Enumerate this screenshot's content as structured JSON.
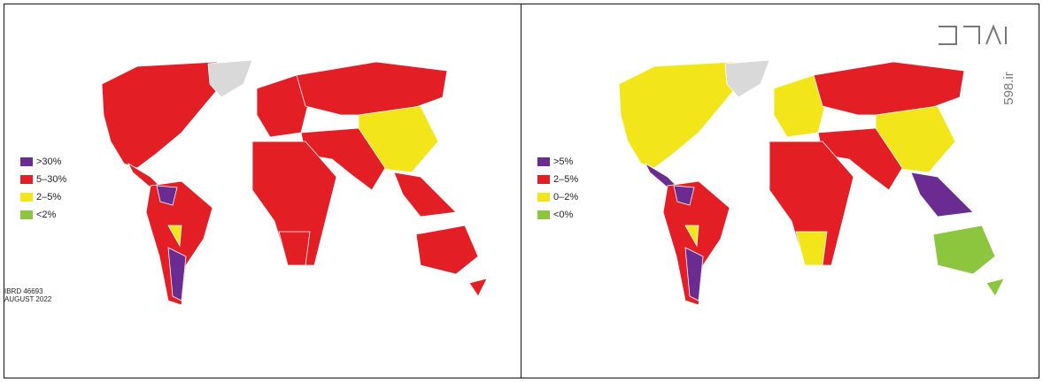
{
  "panels": [
    {
      "legend": [
        {
          "label": ">30%",
          "color": "#6a2c91"
        },
        {
          "label": "5–30%",
          "color": "#e31e24"
        },
        {
          "label": "2–5%",
          "color": "#f2e61b"
        },
        {
          "label": "<2%",
          "color": "#8cc63f"
        }
      ],
      "note": [
        "IBRD 46693",
        "AUGUST 2022"
      ]
    },
    {
      "legend": [
        {
          "label": ">5%",
          "color": "#6a2c91"
        },
        {
          "label": "2–5%",
          "color": "#e31e24"
        },
        {
          "label": "0–2%",
          "color": "#f2e61b"
        },
        {
          "label": "<0%",
          "color": "#8cc63f"
        }
      ]
    }
  ],
  "watermark": "598.ir"
}
